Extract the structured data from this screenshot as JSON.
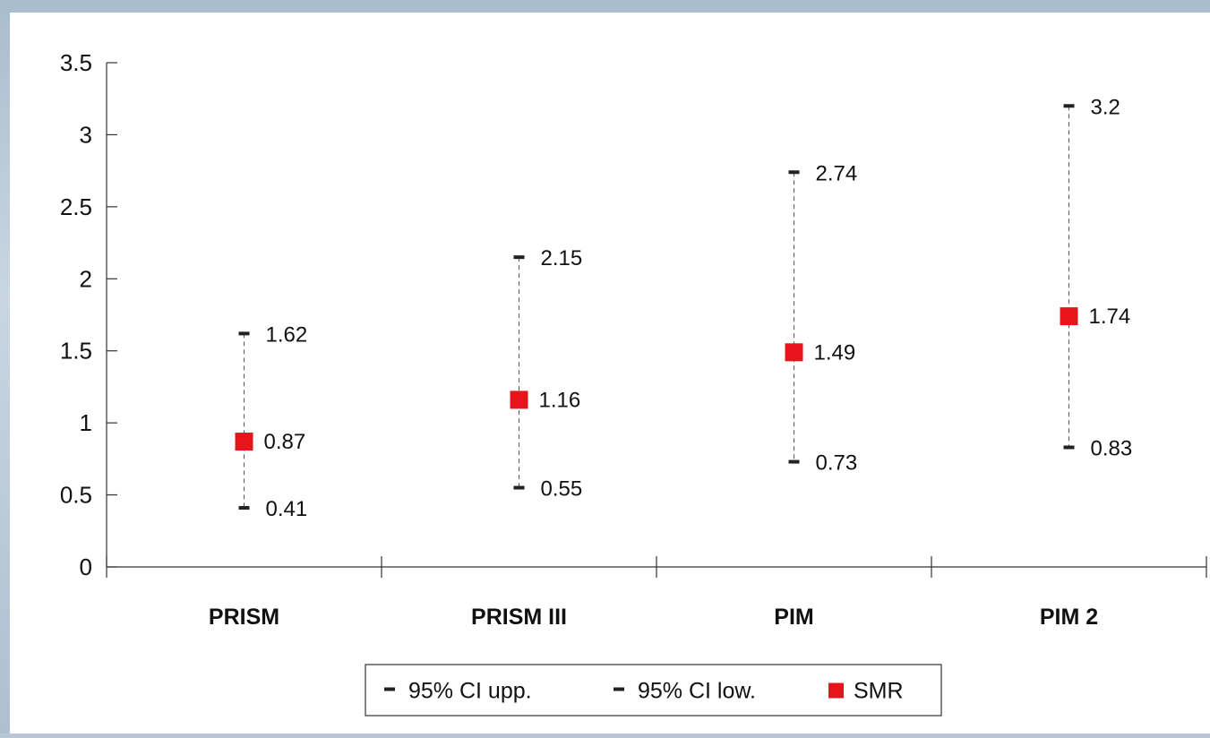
{
  "chart_data": {
    "type": "error-bar",
    "title": "",
    "xlabel": "",
    "ylabel": "",
    "ylim": [
      0,
      3.5
    ],
    "yticks": [
      0,
      0.5,
      1,
      1.5,
      2,
      2.5,
      3,
      3.5
    ],
    "ytick_labels": [
      "0",
      "0.5",
      "1",
      "1.5",
      "2",
      "2.5",
      "3",
      "3.5"
    ],
    "categories": [
      "PRISM",
      "PRISM III",
      "PIM",
      "PIM 2"
    ],
    "series": [
      {
        "name": "95% CI upp.",
        "values": [
          1.62,
          2.15,
          2.74,
          3.2
        ],
        "labels": [
          "1.62",
          "2.15",
          "2.74",
          "3.2"
        ],
        "color": "#222222"
      },
      {
        "name": "95% CI low.",
        "values": [
          0.41,
          0.55,
          0.73,
          0.83
        ],
        "labels": [
          "0.41",
          "0.55",
          "0.73",
          "0.83"
        ],
        "color": "#222222"
      },
      {
        "name": "SMR",
        "values": [
          0.87,
          1.16,
          1.49,
          1.74
        ],
        "labels": [
          "0.87",
          "1.16",
          "1.49",
          "1.74"
        ],
        "color": "#e8141b"
      }
    ],
    "grid": false,
    "legend_position": "bottom-center"
  }
}
